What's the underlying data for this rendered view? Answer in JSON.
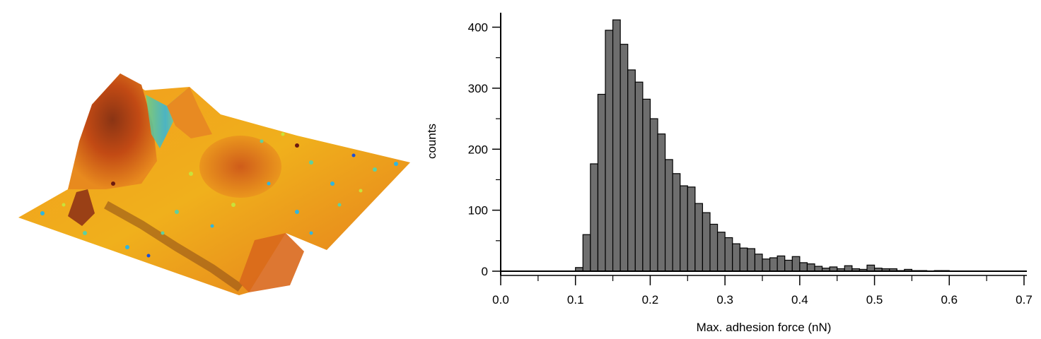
{
  "surface_panel": {
    "colormap": [
      "#6b1a10",
      "#b83a12",
      "#e0641c",
      "#f29a1e",
      "#f5d21f",
      "#c9e23a",
      "#5fd0a0",
      "#2fb6e0",
      "#1a4fd8"
    ]
  },
  "chart_data": {
    "type": "bar",
    "xlabel": "Max. adhesion force (nN)",
    "ylabel": "counts",
    "xlim": [
      0.0,
      0.7
    ],
    "ylim": [
      0,
      420
    ],
    "xticks": [
      "0.0",
      "0.1",
      "0.2",
      "0.3",
      "0.4",
      "0.5",
      "0.6",
      "0.7"
    ],
    "yticks": [
      "0",
      "100",
      "200",
      "300",
      "400"
    ],
    "bin_width": 0.01,
    "bar_color": "#6e6e6e",
    "grid": false,
    "bins_start": [
      0.1,
      0.11,
      0.12,
      0.13,
      0.14,
      0.15,
      0.16,
      0.17,
      0.18,
      0.19,
      0.2,
      0.21,
      0.22,
      0.23,
      0.24,
      0.25,
      0.26,
      0.27,
      0.28,
      0.29,
      0.3,
      0.31,
      0.32,
      0.33,
      0.34,
      0.35,
      0.36,
      0.37,
      0.38,
      0.39,
      0.4,
      0.41,
      0.42,
      0.43,
      0.44,
      0.45,
      0.46,
      0.47,
      0.48,
      0.49,
      0.5,
      0.51,
      0.52,
      0.53,
      0.54,
      0.55,
      0.56,
      0.57,
      0.58,
      0.59,
      0.6
    ],
    "values": [
      6,
      60,
      176,
      290,
      395,
      412,
      372,
      330,
      310,
      282,
      250,
      225,
      183,
      160,
      140,
      138,
      111,
      96,
      77,
      64,
      55,
      45,
      38,
      37,
      28,
      20,
      22,
      25,
      18,
      24,
      14,
      12,
      8,
      5,
      7,
      4,
      9,
      4,
      3,
      10,
      5,
      4,
      4,
      1,
      3,
      1,
      1,
      0,
      1,
      1,
      0
    ]
  }
}
